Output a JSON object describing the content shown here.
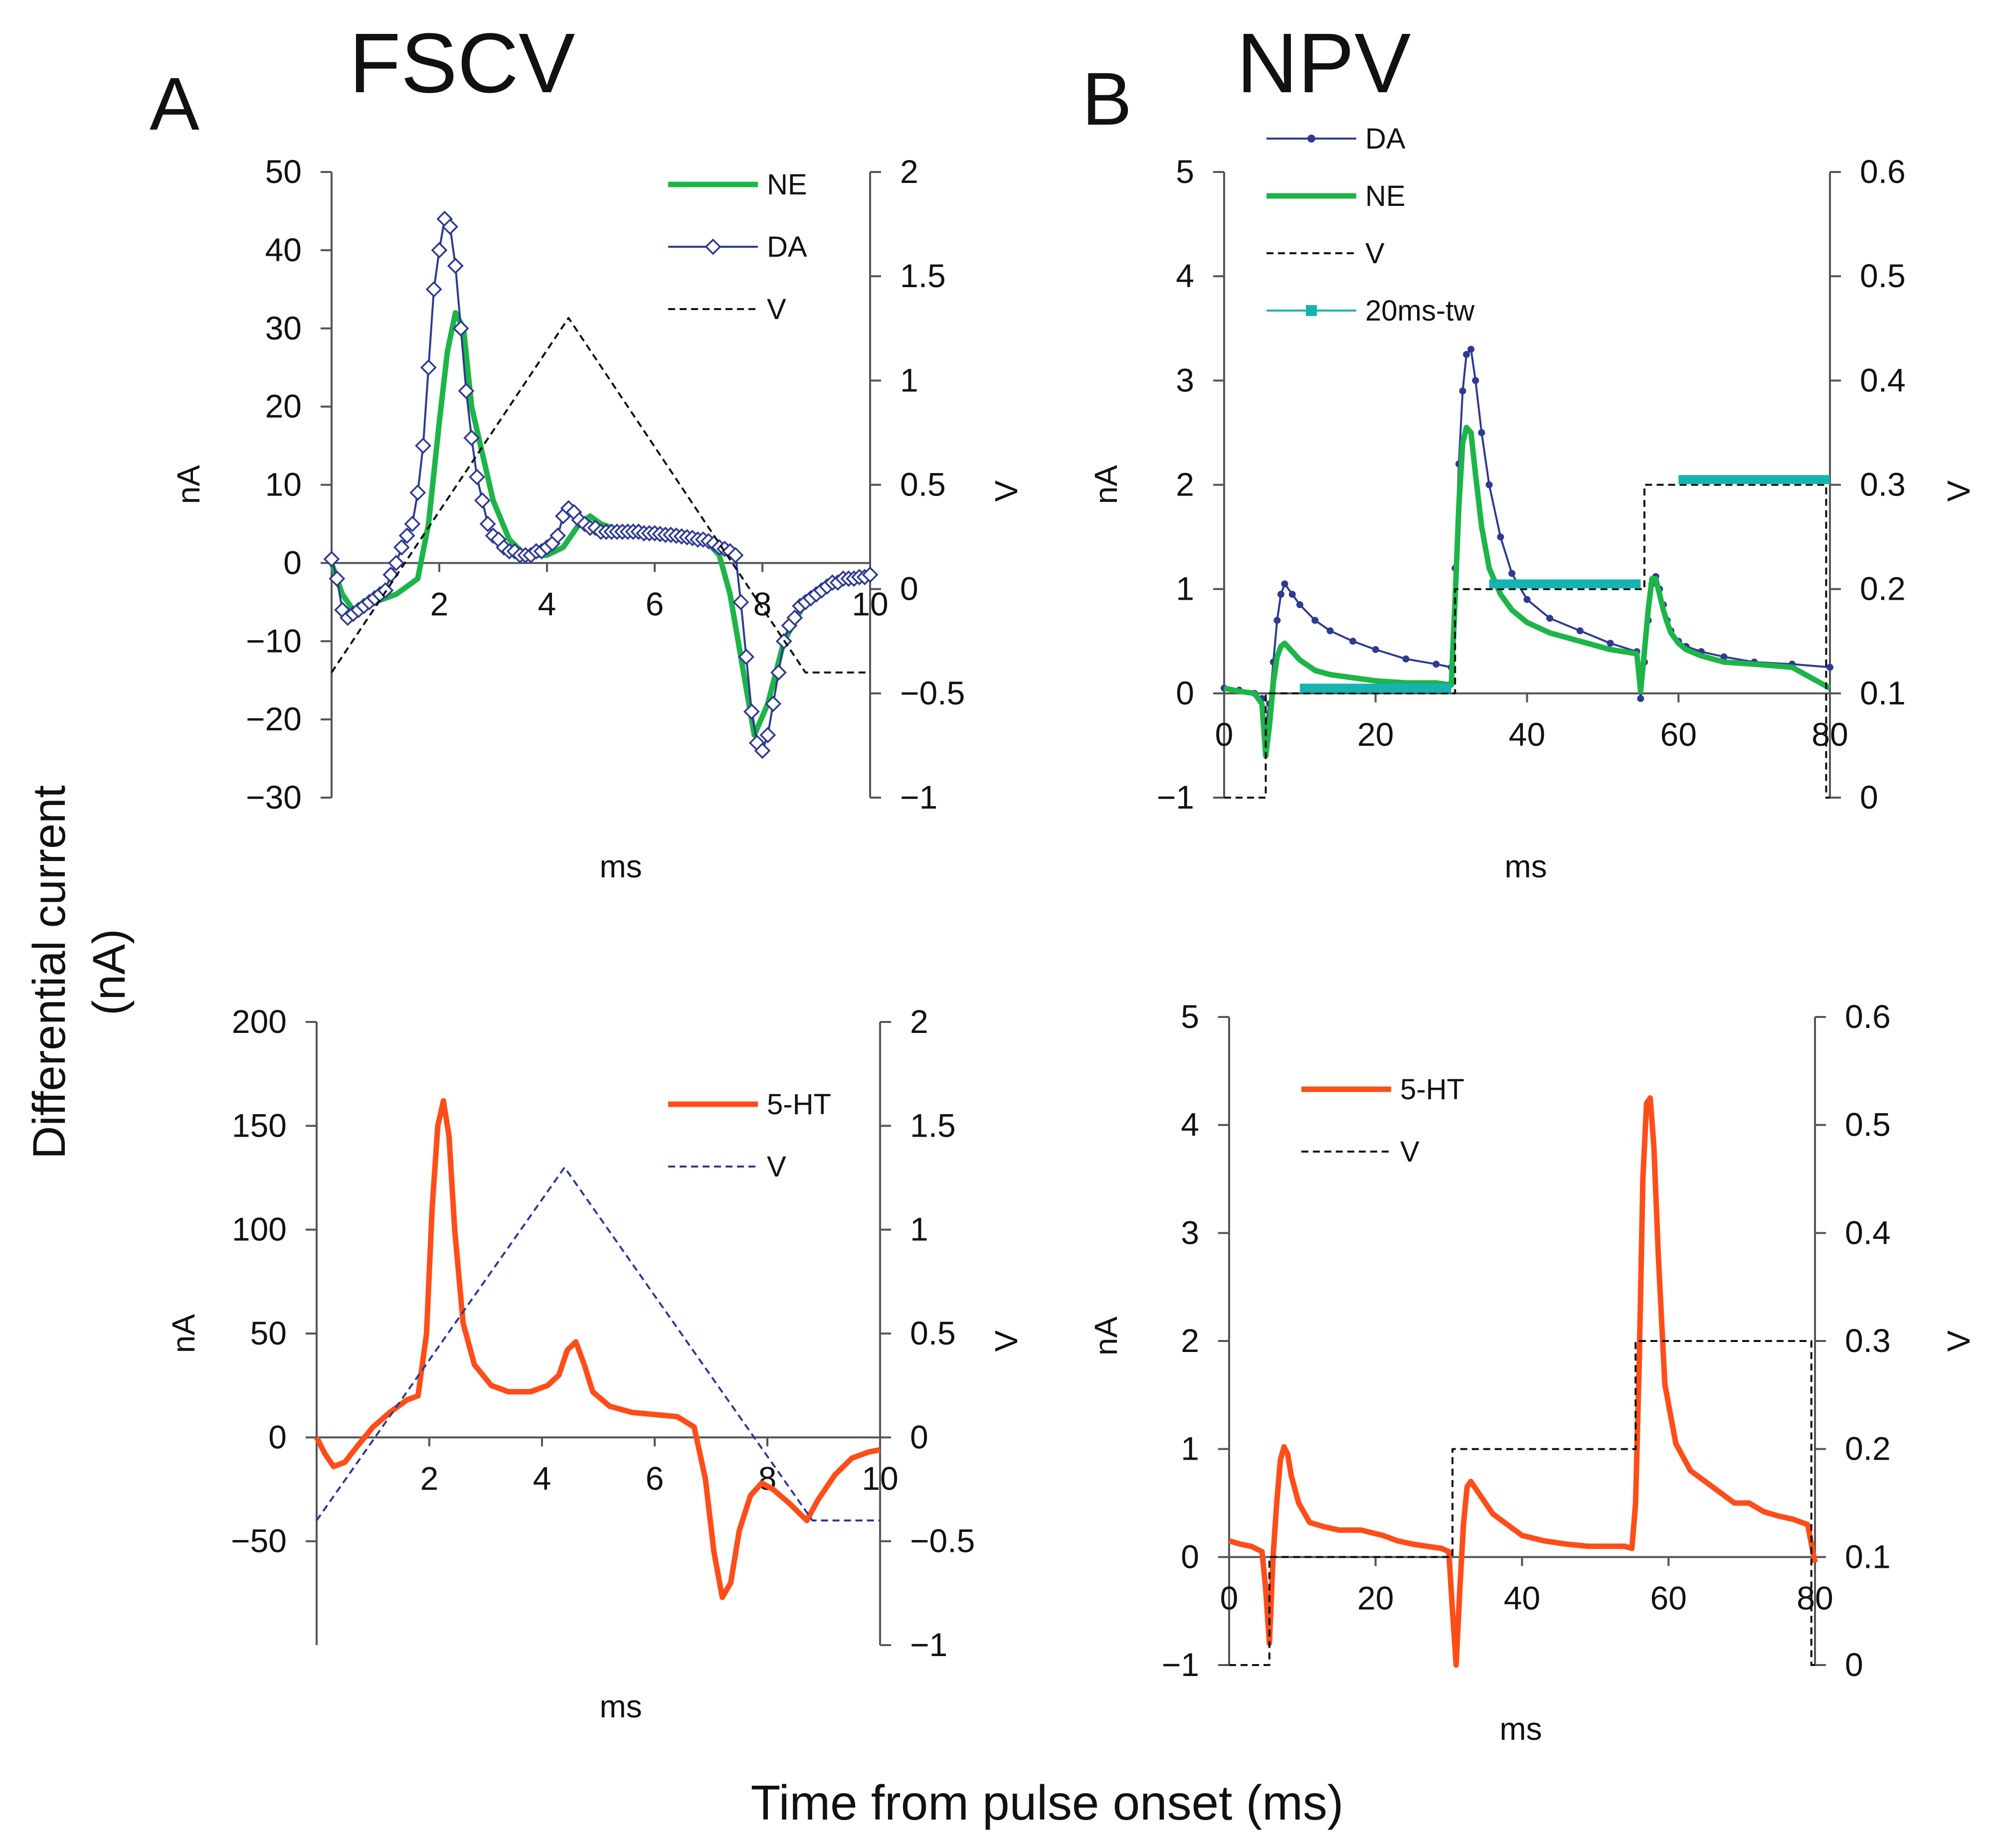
{
  "figure": {
    "panel_a_letter": "A",
    "panel_b_letter": "B",
    "fscv_title": "FSCV",
    "npv_title": "NPV",
    "ylabel_line1": "Differential current",
    "ylabel_line2": "(nA)",
    "xlabel": "Time from pulse onset (ms)"
  },
  "colors": {
    "da": "#2e3a93",
    "ne": "#1db548",
    "ht": "#ff4d1a",
    "tw": "#17b3b0",
    "v_black": "#111111",
    "v_blue": "#2e3a93"
  },
  "chart_data": [
    {
      "id": "fscv_da_ne",
      "type": "line",
      "xlabel": "ms",
      "ylabel": "nA",
      "y2label": "V",
      "xlim": [
        0,
        10
      ],
      "xticks": [
        2,
        4,
        6,
        8,
        10
      ],
      "xtick_labels": [
        "2",
        "4",
        "6",
        "8",
        "10"
      ],
      "ylim": [
        -30,
        50
      ],
      "yticks": [
        -30,
        -20,
        -10,
        0,
        10,
        20,
        30,
        40,
        50
      ],
      "ytick_labels": [
        "−30",
        "−20",
        "−10",
        "0",
        "10",
        "20",
        "30",
        "40",
        "50"
      ],
      "y2lim": [
        -1,
        2
      ],
      "y2ticks": [
        -1,
        -0.5,
        0,
        0.5,
        1,
        1.5,
        2
      ],
      "y2tick_labels": [
        "−1",
        "−0.5",
        "0",
        "0.5",
        "1",
        "1.5",
        "2"
      ],
      "series": [
        {
          "name": "NE",
          "axis": "left",
          "color_key": "ne",
          "style": "thick",
          "x": [
            0,
            0.2,
            0.4,
            0.8,
            1.2,
            1.6,
            1.8,
            2.0,
            2.15,
            2.3,
            2.45,
            2.6,
            2.8,
            3.0,
            3.3,
            3.6,
            4.0,
            4.3,
            4.6,
            4.8,
            5.0,
            5.4,
            6.0,
            6.6,
            7.0,
            7.2,
            7.4,
            7.6,
            7.85,
            8.1,
            8.4,
            8.8,
            9.2,
            9.6,
            10
          ],
          "y": [
            0,
            -4,
            -6,
            -5,
            -4,
            -2,
            5,
            18,
            27,
            32,
            30,
            20,
            14,
            8,
            3,
            1,
            1,
            2,
            5,
            6,
            5,
            4,
            3.5,
            3,
            2.5,
            1,
            -4,
            -12,
            -22,
            -18,
            -10,
            -5,
            -3,
            -2,
            -2
          ]
        },
        {
          "name": "DA",
          "axis": "left",
          "color_key": "da",
          "style": "diamond",
          "x": [
            0,
            0.1,
            0.2,
            0.3,
            0.4,
            0.5,
            0.6,
            0.7,
            0.8,
            0.9,
            1.0,
            1.1,
            1.2,
            1.3,
            1.4,
            1.5,
            1.6,
            1.7,
            1.8,
            1.9,
            2.0,
            2.1,
            2.2,
            2.3,
            2.4,
            2.5,
            2.6,
            2.7,
            2.8,
            2.9,
            3.0,
            3.1,
            3.2,
            3.3,
            3.4,
            3.5,
            3.6,
            3.7,
            3.8,
            3.9,
            4.0,
            4.1,
            4.2,
            4.3,
            4.4,
            4.5,
            4.6,
            4.7,
            4.8,
            4.9,
            5.0,
            5.1,
            5.2,
            5.3,
            5.4,
            5.5,
            5.6,
            5.7,
            5.8,
            5.9,
            6.0,
            6.1,
            6.2,
            6.3,
            6.4,
            6.5,
            6.6,
            6.7,
            6.8,
            6.9,
            7.0,
            7.1,
            7.2,
            7.3,
            7.4,
            7.5,
            7.6,
            7.7,
            7.8,
            7.9,
            8.0,
            8.1,
            8.2,
            8.3,
            8.4,
            8.5,
            8.6,
            8.7,
            8.8,
            8.9,
            9.0,
            9.1,
            9.2,
            9.3,
            9.4,
            9.5,
            9.6,
            9.7,
            9.8,
            9.9,
            10.0
          ],
          "y": [
            0.5,
            -2,
            -6,
            -7,
            -6.5,
            -6,
            -5.5,
            -5,
            -4.5,
            -4,
            -3.5,
            -1.5,
            0,
            2,
            3.5,
            5,
            9,
            15,
            25,
            35,
            40,
            44,
            43,
            38,
            30,
            22,
            16,
            11,
            8,
            5,
            3.5,
            3,
            2,
            1.5,
            1.5,
            1,
            1,
            1,
            1.5,
            1.5,
            2,
            2.5,
            3.5,
            6,
            7,
            6.5,
            5.5,
            5,
            4.5,
            4.5,
            4,
            4,
            4,
            4,
            4,
            4,
            4,
            4,
            3.8,
            3.8,
            3.8,
            3.7,
            3.6,
            3.6,
            3.5,
            3.4,
            3.3,
            3.2,
            3,
            3,
            2.8,
            2.5,
            2,
            1.8,
            1.5,
            1,
            -5,
            -12,
            -19,
            -23,
            -24,
            -22,
            -18,
            -14,
            -10,
            -8,
            -7,
            -5.5,
            -5,
            -4.5,
            -4,
            -3.5,
            -3,
            -2.5,
            -2.5,
            -2,
            -2,
            -2,
            -1.8,
            -1.8,
            -1.5
          ]
        },
        {
          "name": "V",
          "axis": "right",
          "color_key": "v_black",
          "style": "dashed",
          "x": [
            0,
            4.4,
            8.8,
            10
          ],
          "y": [
            -0.4,
            1.3,
            -0.4,
            -0.4
          ]
        }
      ]
    },
    {
      "id": "npv_da_ne",
      "type": "line",
      "xlabel": "ms",
      "ylabel": "nA",
      "y2label": "V",
      "xlim": [
        0,
        80
      ],
      "xticks": [
        0,
        20,
        40,
        60,
        80
      ],
      "xtick_labels": [
        "0",
        "20",
        "40",
        "60",
        "80"
      ],
      "ylim": [
        -1,
        5
      ],
      "yticks": [
        -1,
        0,
        1,
        2,
        3,
        4,
        5
      ],
      "ytick_labels": [
        "−1",
        "0",
        "1",
        "2",
        "3",
        "4",
        "5"
      ],
      "y2lim": [
        0,
        0.6
      ],
      "y2ticks": [
        0,
        0.1,
        0.2,
        0.3,
        0.4,
        0.5,
        0.6
      ],
      "y2tick_labels": [
        "0",
        "0.1",
        "0.2",
        "0.3",
        "0.4",
        "0.5",
        "0.6"
      ],
      "series": [
        {
          "name": "DA",
          "axis": "left",
          "color_key": "da",
          "style": "dotline",
          "x": [
            0,
            2,
            4,
            5,
            5.5,
            6,
            6.5,
            7,
            7.5,
            8,
            9,
            10,
            12,
            14,
            17,
            20,
            24,
            28,
            30,
            30.5,
            31,
            31.5,
            32,
            32.6,
            33.2,
            34,
            35,
            36.5,
            38,
            40,
            43,
            47,
            51,
            54.5,
            55,
            55.5,
            56,
            56.5,
            57,
            57.5,
            58,
            58.5,
            59,
            60,
            61,
            63,
            66,
            70,
            75,
            80
          ],
          "y": [
            0.05,
            0.03,
            0,
            -0.05,
            -0.3,
            -0.1,
            0.3,
            0.7,
            0.95,
            1.05,
            0.95,
            0.85,
            0.7,
            0.6,
            0.5,
            0.42,
            0.33,
            0.28,
            0.25,
            1.2,
            2.2,
            2.9,
            3.25,
            3.3,
            3.0,
            2.5,
            2.0,
            1.5,
            1.15,
            0.9,
            0.72,
            0.6,
            0.48,
            0.4,
            -0.05,
            0.3,
            0.7,
            1.05,
            1.12,
            1.0,
            0.85,
            0.7,
            0.6,
            0.5,
            0.45,
            0.4,
            0.35,
            0.3,
            0.28,
            0.25
          ]
        },
        {
          "name": "NE",
          "axis": "left",
          "color_key": "ne",
          "style": "thick",
          "x": [
            0,
            2,
            4,
            5,
            5.5,
            6,
            6.5,
            7,
            7.5,
            8,
            9,
            10,
            12,
            14,
            17,
            20,
            24,
            28,
            30,
            30.5,
            31,
            31.5,
            32,
            32.6,
            33.2,
            34,
            35,
            36.5,
            38,
            40,
            43,
            47,
            51,
            54.5,
            55,
            55.5,
            56,
            56.5,
            57,
            57.5,
            58,
            58.5,
            59,
            60,
            61,
            63,
            66,
            70,
            75,
            80
          ],
          "y": [
            0.05,
            0.02,
            0,
            -0.1,
            -0.6,
            -0.3,
            0.1,
            0.35,
            0.45,
            0.48,
            0.4,
            0.32,
            0.22,
            0.18,
            0.15,
            0.12,
            0.1,
            0.1,
            0.08,
            0.9,
            1.8,
            2.4,
            2.55,
            2.5,
            2.1,
            1.6,
            1.2,
            0.95,
            0.8,
            0.68,
            0.58,
            0.5,
            0.42,
            0.38,
            0.02,
            0.4,
            0.8,
            1.1,
            1.1,
            0.95,
            0.8,
            0.68,
            0.58,
            0.48,
            0.42,
            0.36,
            0.3,
            0.28,
            0.25,
            0.05
          ]
        },
        {
          "name": "V",
          "axis": "right",
          "color_key": "v_black",
          "style": "dashed",
          "x": [
            0,
            5.5,
            5.5,
            30.5,
            30.5,
            55.5,
            55.5,
            79.5,
            79.5,
            80
          ],
          "y": [
            0,
            0,
            0.1,
            0.1,
            0.2,
            0.2,
            0.3,
            0.3,
            0,
            0
          ]
        },
        {
          "name": "20ms-tw",
          "axis": "left",
          "color_key": "tw",
          "style": "band",
          "segments": [
            {
              "x": [
                10,
                30
              ],
              "y": 0.05
            },
            {
              "x": [
                35,
                55
              ],
              "y": 1.05
            },
            {
              "x": [
                60,
                80
              ],
              "y": 2.05
            }
          ]
        }
      ]
    },
    {
      "id": "fscv_5ht",
      "type": "line",
      "xlabel": "ms",
      "ylabel": "nA",
      "y2label": "V",
      "xlim": [
        0,
        10
      ],
      "xticks": [
        2,
        4,
        6,
        8,
        10
      ],
      "xtick_labels": [
        "2",
        "4",
        "6",
        "8",
        "10"
      ],
      "ylim": [
        -100,
        200
      ],
      "yticks": [
        -50,
        0,
        50,
        100,
        150,
        200
      ],
      "ytick_labels": [
        "−50",
        "0",
        "50",
        "100",
        "150",
        "200"
      ],
      "y2lim": [
        -1,
        2
      ],
      "y2ticks": [
        -1,
        -0.5,
        0,
        0.5,
        1,
        1.5,
        2
      ],
      "y2tick_labels": [
        "−1",
        "−0.5",
        "0",
        "0.5",
        "1",
        "1.5",
        "2"
      ],
      "series": [
        {
          "name": "5-HT",
          "axis": "left",
          "color_key": "ht",
          "style": "thick",
          "x": [
            0,
            0.15,
            0.3,
            0.5,
            0.7,
            1.0,
            1.3,
            1.6,
            1.8,
            1.95,
            2.05,
            2.15,
            2.25,
            2.35,
            2.45,
            2.6,
            2.8,
            3.1,
            3.4,
            3.8,
            4.1,
            4.3,
            4.45,
            4.6,
            4.75,
            4.9,
            5.2,
            5.6,
            6.0,
            6.4,
            6.7,
            6.9,
            7.05,
            7.2,
            7.35,
            7.5,
            7.7,
            7.9,
            8.1,
            8.4,
            8.7,
            8.9,
            9.2,
            9.5,
            9.8,
            10
          ],
          "y": [
            0,
            -8,
            -14,
            -12,
            -5,
            5,
            12,
            18,
            20,
            50,
            110,
            150,
            162,
            145,
            100,
            55,
            35,
            25,
            22,
            22,
            25,
            30,
            42,
            46,
            35,
            22,
            15,
            12,
            11,
            10,
            5,
            -20,
            -55,
            -77,
            -70,
            -45,
            -28,
            -22,
            -25,
            -32,
            -40,
            -30,
            -18,
            -10,
            -7,
            -6
          ]
        },
        {
          "name": "V",
          "axis": "right",
          "color_key": "v_blue",
          "style": "dashed",
          "x": [
            0,
            4.4,
            8.8,
            10
          ],
          "y": [
            -0.4,
            1.3,
            -0.4,
            -0.4
          ]
        }
      ]
    },
    {
      "id": "npv_5ht",
      "type": "line",
      "xlabel": "ms",
      "ylabel": "nA",
      "y2label": "V",
      "xlim": [
        0,
        80
      ],
      "xticks": [
        0,
        20,
        40,
        60,
        80
      ],
      "xtick_labels": [
        "0",
        "20",
        "40",
        "60",
        "80"
      ],
      "ylim": [
        -1,
        5
      ],
      "yticks": [
        -1,
        0,
        1,
        2,
        3,
        4,
        5
      ],
      "ytick_labels": [
        "−1",
        "0",
        "1",
        "2",
        "3",
        "4",
        "5"
      ],
      "y2lim": [
        0,
        0.6
      ],
      "y2ticks": [
        0,
        0.1,
        0.2,
        0.3,
        0.4,
        0.5,
        0.6
      ],
      "y2tick_labels": [
        "0",
        "0.1",
        "0.2",
        "0.3",
        "0.4",
        "0.5",
        "0.6"
      ],
      "series": [
        {
          "name": "5-HT",
          "axis": "left",
          "color_key": "ht",
          "style": "thick",
          "x": [
            0,
            1.5,
            3,
            4.5,
            5,
            5.5,
            6,
            6.5,
            7,
            7.5,
            8,
            8.5,
            9.5,
            11,
            13,
            15,
            18,
            21,
            23,
            25,
            27,
            29,
            30,
            30.5,
            31,
            31.5,
            32,
            32.5,
            33,
            34,
            36,
            38,
            40,
            43,
            46,
            49,
            52,
            54,
            55,
            55.5,
            56,
            56.5,
            57,
            57.5,
            58,
            58.6,
            59.5,
            61,
            63,
            65,
            67,
            69,
            71,
            73,
            75,
            77,
            79,
            80
          ],
          "y": [
            0.15,
            0.12,
            0.1,
            0.05,
            -0.3,
            -0.8,
            0.0,
            0.5,
            0.9,
            1.02,
            0.95,
            0.75,
            0.5,
            0.32,
            0.28,
            0.25,
            0.25,
            0.2,
            0.15,
            0.12,
            0.1,
            0.08,
            0.05,
            -0.5,
            -1.0,
            -0.3,
            0.3,
            0.65,
            0.7,
            0.6,
            0.4,
            0.3,
            0.2,
            0.15,
            0.12,
            0.1,
            0.1,
            0.1,
            0.08,
            0.5,
            1.8,
            3.5,
            4.2,
            4.25,
            3.8,
            2.8,
            1.6,
            1.05,
            0.8,
            0.7,
            0.6,
            0.5,
            0.5,
            0.42,
            0.38,
            0.35,
            0.3,
            -0.05
          ]
        },
        {
          "name": "V",
          "axis": "right",
          "color_key": "v_black",
          "style": "dashed",
          "x": [
            0,
            5.5,
            5.5,
            30.5,
            30.5,
            55.5,
            55.5,
            79.5,
            79.5,
            80
          ],
          "y": [
            0,
            0,
            0.1,
            0.1,
            0.2,
            0.2,
            0.3,
            0.3,
            0,
            0
          ]
        }
      ]
    }
  ]
}
